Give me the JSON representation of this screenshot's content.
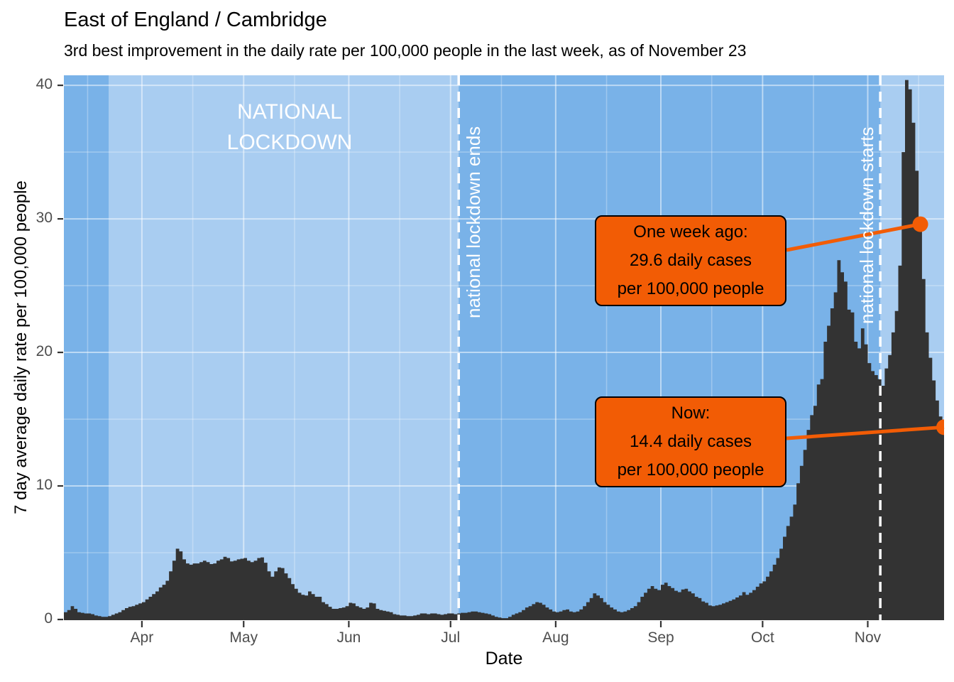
{
  "header": {
    "title": "East of England / Cambridge",
    "subtitle": "3rd best improvement in the daily rate per 100,000 people in the last week, as of November 23"
  },
  "chart_data": {
    "type": "area",
    "title": "East of England / Cambridge",
    "subtitle": "3rd best improvement in the daily rate per 100,000 people in the last week, as of November 23",
    "xlabel": "Date",
    "ylabel": "7 day average daily rate per 100,000 people",
    "x_unit": "days since March 9",
    "xlim_days": [
      0,
      259.5
    ],
    "ylim": [
      0,
      40.75
    ],
    "x_tick_labels": [
      "Apr",
      "May",
      "Jun",
      "Jul",
      "Aug",
      "Sep",
      "Oct",
      "Nov"
    ],
    "x_tick_days": [
      23,
      53,
      84,
      114,
      145,
      176,
      206,
      237
    ],
    "x_minor_tick_days": [
      7,
      38,
      68,
      99,
      129,
      160,
      191,
      221,
      252
    ],
    "y_ticks": [
      0,
      10,
      20,
      30,
      40
    ],
    "y_minor_ticks": [
      5,
      15,
      25,
      35
    ],
    "grid": true,
    "series_daily_rate": [
      0.55,
      0.7,
      1.0,
      0.8,
      0.55,
      0.5,
      0.45,
      0.45,
      0.4,
      0.3,
      0.25,
      0.2,
      0.2,
      0.25,
      0.35,
      0.45,
      0.55,
      0.7,
      0.85,
      0.95,
      1.0,
      1.1,
      1.2,
      1.3,
      1.5,
      1.7,
      1.9,
      2.1,
      2.4,
      2.6,
      2.9,
      3.6,
      4.4,
      5.3,
      5.1,
      4.5,
      4.2,
      4.1,
      4.2,
      4.2,
      4.3,
      4.4,
      4.3,
      4.15,
      4.2,
      4.4,
      4.5,
      4.7,
      4.6,
      4.35,
      4.4,
      4.5,
      4.55,
      4.6,
      4.4,
      4.3,
      4.4,
      4.6,
      4.65,
      4.25,
      3.6,
      3.2,
      3.6,
      3.9,
      3.85,
      3.45,
      3.1,
      2.65,
      2.3,
      2.0,
      1.85,
      1.8,
      2.1,
      1.9,
      1.7,
      1.7,
      1.3,
      1.15,
      0.95,
      0.8,
      0.8,
      0.85,
      0.9,
      1.0,
      1.25,
      1.2,
      1.0,
      0.9,
      0.8,
      0.9,
      1.25,
      1.2,
      0.8,
      0.7,
      0.65,
      0.6,
      0.55,
      0.4,
      0.35,
      0.3,
      0.3,
      0.25,
      0.25,
      0.3,
      0.35,
      0.45,
      0.45,
      0.4,
      0.45,
      0.45,
      0.4,
      0.35,
      0.4,
      0.45,
      0.45,
      0.4,
      0.45,
      0.5,
      0.5,
      0.55,
      0.6,
      0.6,
      0.55,
      0.5,
      0.45,
      0.4,
      0.3,
      0.2,
      0.15,
      0.1,
      0.1,
      0.2,
      0.35,
      0.45,
      0.55,
      0.7,
      0.9,
      1.0,
      1.15,
      1.3,
      1.25,
      1.1,
      0.9,
      0.75,
      0.6,
      0.55,
      0.6,
      0.7,
      0.75,
      0.6,
      0.55,
      0.6,
      0.75,
      1.0,
      1.3,
      1.6,
      1.95,
      1.8,
      1.6,
      1.3,
      1.1,
      0.9,
      0.75,
      0.6,
      0.55,
      0.6,
      0.7,
      0.85,
      1.0,
      1.3,
      1.7,
      2.0,
      2.3,
      2.5,
      2.3,
      2.2,
      2.6,
      2.75,
      2.5,
      2.35,
      2.15,
      2.05,
      2.25,
      2.3,
      2.1,
      1.95,
      1.7,
      1.6,
      1.35,
      1.25,
      1.05,
      1.0,
      1.05,
      1.1,
      1.2,
      1.3,
      1.4,
      1.5,
      1.65,
      1.8,
      2.05,
      1.85,
      2.0,
      2.2,
      2.45,
      2.7,
      2.85,
      3.2,
      3.6,
      4.1,
      4.6,
      5.3,
      6.2,
      7.0,
      7.7,
      8.6,
      10.2,
      11.5,
      12.7,
      14.2,
      15.3,
      16.0,
      17.6,
      18.0,
      20.8,
      22.0,
      23.3,
      24.5,
      26.9,
      26.0,
      25.3,
      23.2,
      23.0,
      20.8,
      20.3,
      21.8,
      20.6,
      19.2,
      18.6,
      18.3,
      18.0,
      17.5,
      18.8,
      19.8,
      21.5,
      23.1,
      26.5,
      35.0,
      40.4,
      39.7,
      37.2,
      33.6,
      29.6,
      25.5,
      21.5,
      19.6,
      17.9,
      16.4,
      15.2,
      14.4
    ],
    "shading": [
      {
        "name": "national-lockdown-spring",
        "start_day": 13.2,
        "end_day": 116.4,
        "label_lines": [
          "NATIONAL",
          "LOCKDOWN"
        ]
      },
      {
        "name": "national-lockdown-autumn",
        "start_day": 240.7,
        "end_day": 259.5,
        "label_lines": []
      }
    ],
    "vlines": [
      {
        "day": 116.4,
        "label": "national lockdown ends",
        "label_side": "right"
      },
      {
        "day": 240.7,
        "label": "national lockdown starts",
        "label_side": "left"
      }
    ],
    "annotations": [
      {
        "name": "one-week-ago",
        "lines": [
          "One week ago:",
          "29.6 daily cases",
          "per 100,000 people"
        ],
        "point_day": 252,
        "point_value": 29.6
      },
      {
        "name": "now",
        "lines": [
          "Now:",
          "14.4 daily cases",
          "per 100,000 people"
        ],
        "point_day": 259,
        "point_value": 14.4
      }
    ],
    "colors": {
      "panel_blue": "#79B2E8",
      "lockdown_blue": "#A9CDF1",
      "area_dark": "#333333",
      "orange": "#F25C05",
      "grid_major": "rgba(255,255,255,0.50)",
      "grid_minor": "rgba(255,255,255,0.28)",
      "vline_white": "#FFFFFF",
      "tick_label": "#4D4D4D",
      "axis_tick": "#333333",
      "text": "#000000"
    },
    "legend": "none"
  }
}
